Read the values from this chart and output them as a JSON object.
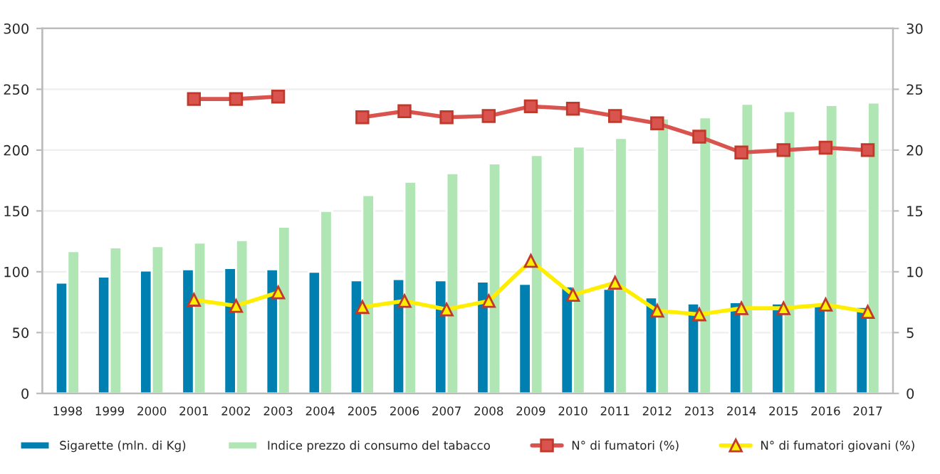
{
  "chart_data": {
    "type": "bar",
    "categories": [
      "1998",
      "1999",
      "2000",
      "2001",
      "2002",
      "2003",
      "2004",
      "2005",
      "2006",
      "2007",
      "2008",
      "2009",
      "2010",
      "2011",
      "2012",
      "2013",
      "2014",
      "2015",
      "2016",
      "2017"
    ],
    "series": [
      {
        "name": "Sigarette (mln. di Kg)",
        "color": "#0080b0",
        "values": [
          91,
          96,
          101,
          102,
          103,
          102,
          100,
          93,
          94,
          93,
          92,
          90,
          88,
          86,
          79,
          74,
          75,
          74,
          73,
          71
        ]
      },
      {
        "name": "Indice prezzo di consumo del tabacco",
        "color": "#b0e6b4",
        "values": [
          117,
          120,
          121,
          124,
          126,
          137,
          150,
          163,
          174,
          181,
          189,
          196,
          203,
          210,
          226,
          227,
          238,
          232,
          237,
          239
        ]
      },
      {
        "name": "N° di fumatori (%)",
        "type": "line",
        "axis": "y2",
        "marker": "square",
        "color": "#d9534f",
        "values": [
          null,
          null,
          null,
          24.2,
          24.2,
          24.4,
          null,
          22.7,
          23.2,
          22.7,
          22.8,
          23.6,
          23.4,
          22.8,
          22.2,
          21.1,
          19.8,
          20.0,
          20.2,
          20.0
        ]
      },
      {
        "name": "N° di fumatori giovani (%)",
        "type": "line",
        "axis": "y2",
        "marker": "triangle",
        "color": "#ffee00",
        "values": [
          null,
          null,
          null,
          7.7,
          7.2,
          8.3,
          null,
          7.1,
          7.6,
          6.9,
          7.6,
          10.9,
          8.1,
          9.1,
          6.8,
          6.5,
          7.0,
          7.0,
          7.3,
          6.7
        ]
      }
    ],
    "ylim": [
      0,
      300
    ],
    "yticks": [
      0,
      50,
      100,
      150,
      200,
      250,
      300
    ],
    "y2lim": [
      0,
      30
    ],
    "y2ticks": [
      0,
      5,
      10,
      15,
      20,
      25,
      30
    ],
    "grid": "y",
    "legend": "bottom"
  }
}
